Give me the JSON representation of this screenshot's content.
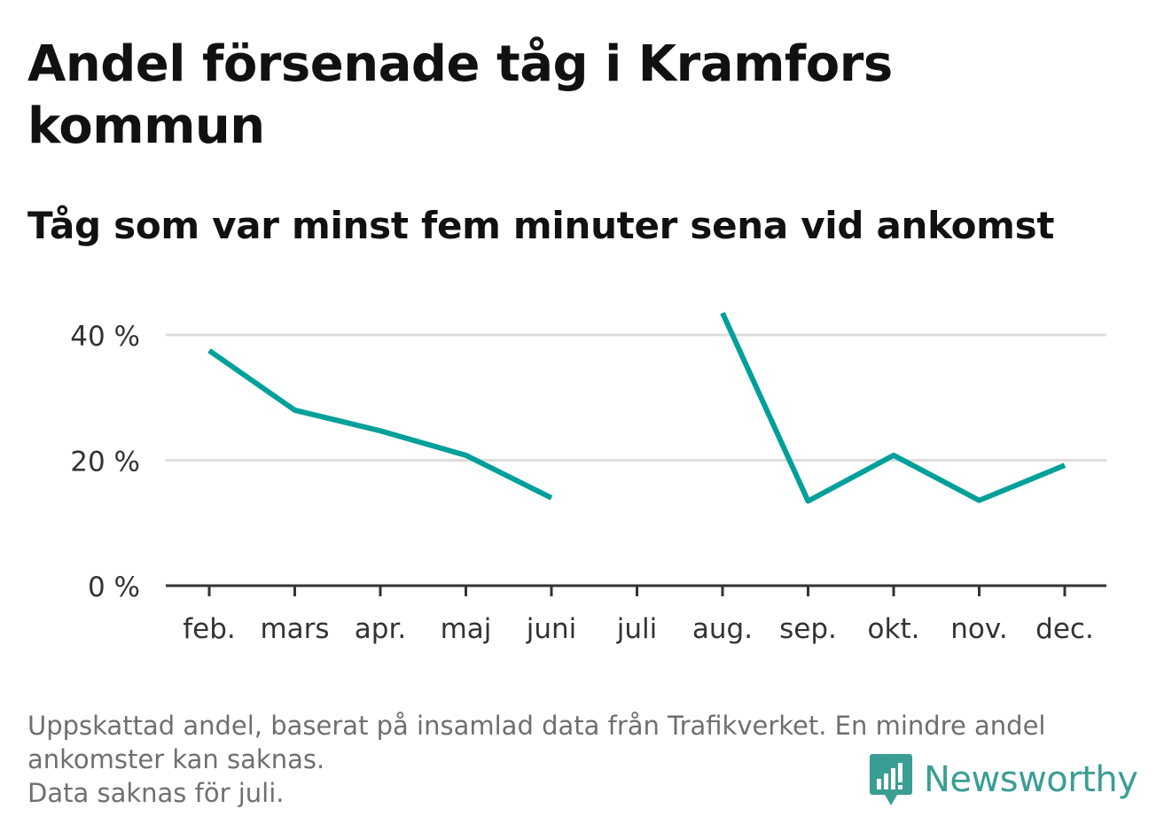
{
  "title": "Andel försenade tåg i Kramfors kommun",
  "subtitle": "Tåg som var minst fem minuter sena vid ankomst",
  "footnote": {
    "line1": "Uppskattad andel, baserat på insamlad data från Trafikverket. En mindre andel",
    "line2": "ankomster kan saknas.",
    "line3": "Data saknas för juli."
  },
  "brand": {
    "name": "Newsworthy",
    "icon": "newsworthy-logo-icon",
    "color": "#3a9e94"
  },
  "colors": {
    "line": "#00a09a",
    "grid": "#dddddd",
    "axis": "#333333",
    "tick_text": "#333333"
  },
  "chart_data": {
    "type": "line",
    "title": "Andel försenade tåg i Kramfors kommun",
    "subtitle": "Tåg som var minst fem minuter sena vid ankomst",
    "categories": [
      "feb.",
      "mars",
      "apr.",
      "maj",
      "juni",
      "juli",
      "aug.",
      "sep.",
      "okt.",
      "nov.",
      "dec."
    ],
    "series": [
      {
        "values": [
          37.5,
          28,
          24.7,
          20.8,
          14,
          null,
          43.5,
          13.5,
          20.8,
          13.6,
          19.2
        ]
      }
    ],
    "ylim": [
      0,
      45
    ],
    "yticks": [
      0,
      20,
      40
    ],
    "ytick_labels": [
      "0 %",
      "20 %",
      "40 %"
    ],
    "unit": "%",
    "grid": true,
    "legend": "none"
  }
}
